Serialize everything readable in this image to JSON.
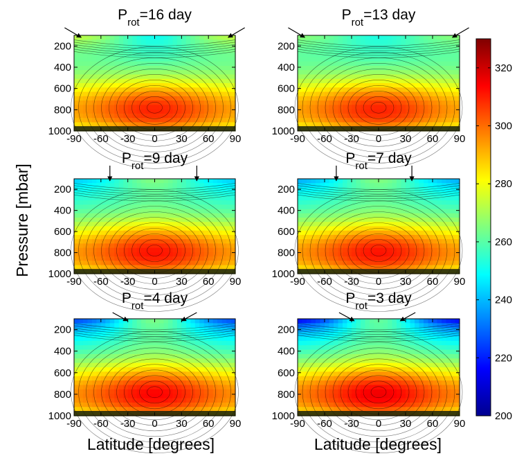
{
  "chart_data": {
    "type": "heatmap",
    "xlabel": "Latitude [degrees]",
    "ylabel": "Pressure [mbar]",
    "xlim": [
      -90,
      90
    ],
    "ylim": [
      1000,
      100
    ],
    "x_ticks": [
      -90,
      -60,
      -30,
      0,
      30,
      60,
      90
    ],
    "y_ticks": [
      200,
      400,
      600,
      800,
      1000
    ],
    "colorbar": {
      "min": 200,
      "max": 330,
      "ticks": [
        200,
        220,
        240,
        260,
        280,
        300,
        320
      ],
      "colormap": "jet"
    },
    "panels": [
      {
        "title_main": "P",
        "title_sub": "rot",
        "title_rest": "=16 day",
        "P_rot_days": 16,
        "T_peak": 310,
        "T_top_center": 250,
        "T_top_pole": 276,
        "arrow_latitudes": [
          -82,
          82
        ]
      },
      {
        "title_main": "P",
        "title_sub": "rot",
        "title_rest": "=13 day",
        "P_rot_days": 13,
        "T_peak": 310,
        "T_top_center": 252,
        "T_top_pole": 268,
        "arrow_latitudes": [
          -82,
          82
        ]
      },
      {
        "title_main": "P",
        "title_sub": "rot",
        "title_rest": "=9 day",
        "P_rot_days": 9,
        "T_peak": 312,
        "T_top_center": 266,
        "T_top_pole": 240,
        "arrow_latitudes": [
          -50,
          47
        ]
      },
      {
        "title_main": "P",
        "title_sub": "rot",
        "title_rest": "=7 day",
        "P_rot_days": 7,
        "T_peak": 312,
        "T_top_center": 266,
        "T_top_pole": 235,
        "arrow_latitudes": [
          -47,
          37
        ]
      },
      {
        "title_main": "P",
        "title_sub": "rot",
        "title_rest": "=4 day",
        "P_rot_days": 4,
        "T_peak": 314,
        "T_top_center": 265,
        "T_top_pole": 220,
        "arrow_latitudes": [
          -30,
          30
        ]
      },
      {
        "title_main": "P",
        "title_sub": "rot",
        "title_rest": "=3 day",
        "P_rot_days": 3,
        "T_peak": 316,
        "T_top_center": 262,
        "T_top_pole": 210,
        "arrow_latitudes": [
          -27,
          24
        ]
      }
    ]
  }
}
